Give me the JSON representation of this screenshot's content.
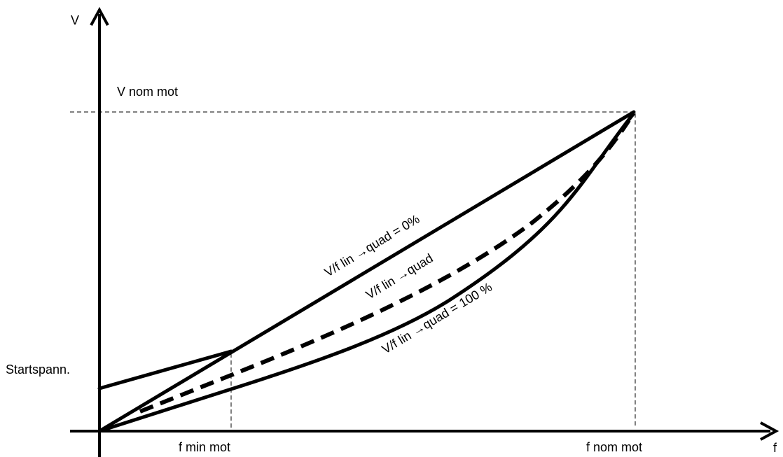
{
  "axes": {
    "y_label": "V",
    "x_label": "f"
  },
  "labels": {
    "v_nom": "V nom mot",
    "start": "Startspann.",
    "f_min": "f min mot",
    "f_nom": "f nom mot"
  },
  "curves": {
    "linear": "V/f lin →quad = 0%",
    "mixed": "V/f lin →quad",
    "quadratic": "V/f lin →quad = 100 %"
  },
  "colors": {
    "ink": "#000000",
    "background": "#ffffff"
  }
}
